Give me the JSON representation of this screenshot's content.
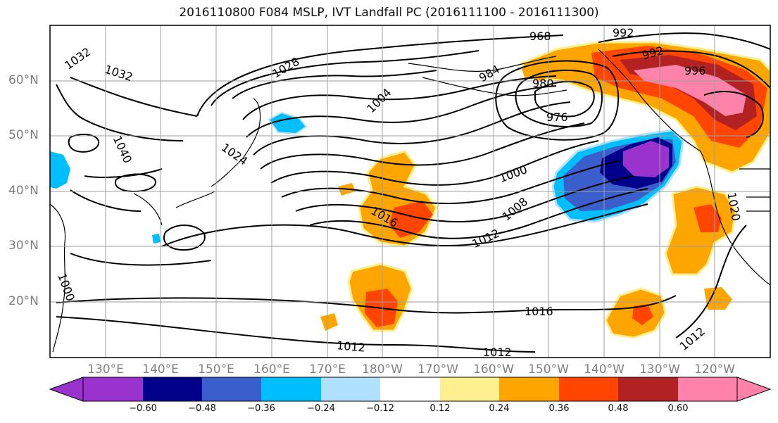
{
  "title": "2016110800 F084 MSLP, IVT Landfall PC (2016111100 - 2016111300)",
  "map": {
    "lat_labels": [
      "60°N",
      "50°N",
      "40°N",
      "30°N",
      "20°N"
    ],
    "lon_labels": [
      "130°E",
      "140°E",
      "150°E",
      "160°E",
      "170°E",
      "180°W",
      "170°W",
      "160°W",
      "150°W",
      "140°W",
      "130°W",
      "120°W"
    ],
    "isobar_labels": [
      "1032",
      "1032",
      "1028",
      "1040",
      "1024",
      "1004",
      "984",
      "968",
      "992",
      "992",
      "996",
      "980",
      "976",
      "1000",
      "1008",
      "1016",
      "1012",
      "1016",
      "1012",
      "1012",
      "1012",
      "1000",
      "1020"
    ]
  },
  "colorbar": {
    "colors": [
      "#9a32cd",
      "#00008b",
      "#3a5fcd",
      "#00bfff",
      "#b0e2ff",
      "#ffffff",
      "#fff08f",
      "#ffa500",
      "#ff4500",
      "#b22222",
      "#ff82ab"
    ],
    "tick_labels": [
      "−0.60",
      "−0.48",
      "−0.36",
      "−0.24",
      "−0.12",
      "0.12",
      "0.24",
      "0.36",
      "0.48",
      "0.60"
    ]
  }
}
